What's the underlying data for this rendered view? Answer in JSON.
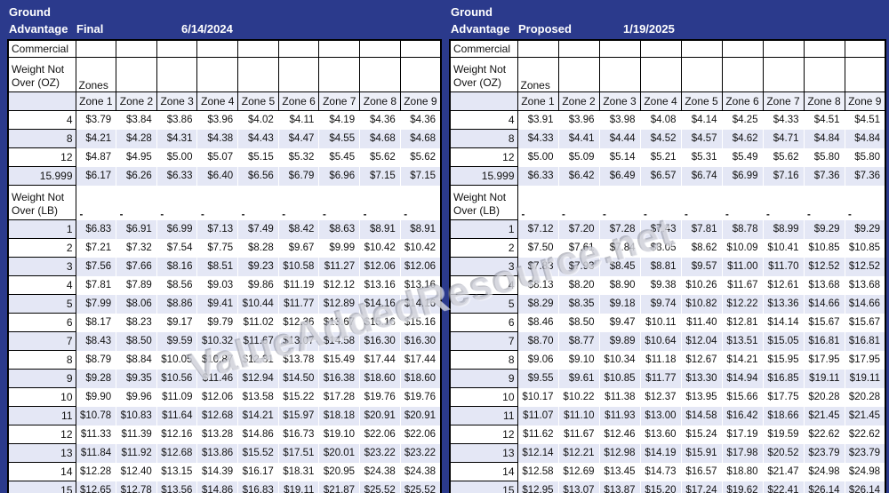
{
  "watermark": "ValueAddedResource.net",
  "colors": {
    "navy_background": "#2B3A8C",
    "stripe_lavender": "#E4E7F5",
    "zone_header_bg": "#EDEFF8",
    "grid_border": "#000000",
    "header_text": "#FFFFFF"
  },
  "chart_data": [
    {
      "type": "table",
      "title_line1": "Ground",
      "title_line2": "Advantage",
      "variant": "Final",
      "date": "6/14/2024",
      "commercial_label": "Commercial",
      "oz_header": "Weight Not Over (OZ)",
      "zones_label": "Zones",
      "columns": [
        "Zone 1",
        "Zone 2",
        "Zone 3",
        "Zone 4",
        "Zone 5",
        "Zone 6",
        "Zone 7",
        "Zone 8",
        "Zone 9"
      ],
      "oz_rows": [
        {
          "weight": "4",
          "values": [
            "$3.79",
            "$3.84",
            "$3.86",
            "$3.96",
            "$4.02",
            "$4.11",
            "$4.19",
            "$4.36",
            "$4.36"
          ]
        },
        {
          "weight": "8",
          "values": [
            "$4.21",
            "$4.28",
            "$4.31",
            "$4.38",
            "$4.43",
            "$4.47",
            "$4.55",
            "$4.68",
            "$4.68"
          ]
        },
        {
          "weight": "12",
          "values": [
            "$4.87",
            "$4.95",
            "$5.00",
            "$5.07",
            "$5.15",
            "$5.32",
            "$5.45",
            "$5.62",
            "$5.62"
          ]
        },
        {
          "weight": "15.999",
          "values": [
            "$6.17",
            "$6.26",
            "$6.33",
            "$6.40",
            "$6.56",
            "$6.79",
            "$6.96",
            "$7.15",
            "$7.15"
          ]
        }
      ],
      "lb_header": "Weight Not Over (LB)",
      "lb_placeholder": "-",
      "lb_rows": [
        {
          "weight": "1",
          "values": [
            "$6.83",
            "$6.91",
            "$6.99",
            "$7.13",
            "$7.49",
            "$8.42",
            "$8.63",
            "$8.91",
            "$8.91"
          ]
        },
        {
          "weight": "2",
          "values": [
            "$7.21",
            "$7.32",
            "$7.54",
            "$7.75",
            "$8.28",
            "$9.67",
            "$9.99",
            "$10.42",
            "$10.42"
          ]
        },
        {
          "weight": "3",
          "values": [
            "$7.56",
            "$7.66",
            "$8.16",
            "$8.51",
            "$9.23",
            "$10.58",
            "$11.27",
            "$12.06",
            "$12.06"
          ]
        },
        {
          "weight": "4",
          "values": [
            "$7.81",
            "$7.89",
            "$8.56",
            "$9.03",
            "$9.86",
            "$11.19",
            "$12.12",
            "$13.16",
            "$13.16"
          ]
        },
        {
          "weight": "5",
          "values": [
            "$7.99",
            "$8.06",
            "$8.86",
            "$9.41",
            "$10.44",
            "$11.77",
            "$12.89",
            "$14.16",
            "$14.16"
          ]
        },
        {
          "weight": "6",
          "values": [
            "$8.17",
            "$8.23",
            "$9.17",
            "$9.79",
            "$11.02",
            "$12.36",
            "$13.67",
            "$15.16",
            "$15.16"
          ]
        },
        {
          "weight": "7",
          "values": [
            "$8.43",
            "$8.50",
            "$9.59",
            "$10.32",
            "$11.67",
            "$13.07",
            "$14.58",
            "$16.30",
            "$16.30"
          ]
        },
        {
          "weight": "8",
          "values": [
            "$8.79",
            "$8.84",
            "$10.05",
            "$10.87",
            "$12.31",
            "$13.78",
            "$15.49",
            "$17.44",
            "$17.44"
          ]
        },
        {
          "weight": "9",
          "values": [
            "$9.28",
            "$9.35",
            "$10.56",
            "$11.46",
            "$12.94",
            "$14.50",
            "$16.38",
            "$18.60",
            "$18.60"
          ]
        },
        {
          "weight": "10",
          "values": [
            "$9.90",
            "$9.96",
            "$11.09",
            "$12.06",
            "$13.58",
            "$15.22",
            "$17.28",
            "$19.76",
            "$19.76"
          ]
        },
        {
          "weight": "11",
          "values": [
            "$10.78",
            "$10.83",
            "$11.64",
            "$12.68",
            "$14.21",
            "$15.97",
            "$18.18",
            "$20.91",
            "$20.91"
          ]
        },
        {
          "weight": "12",
          "values": [
            "$11.33",
            "$11.39",
            "$12.16",
            "$13.28",
            "$14.86",
            "$16.73",
            "$19.10",
            "$22.06",
            "$22.06"
          ]
        },
        {
          "weight": "13",
          "values": [
            "$11.84",
            "$11.92",
            "$12.68",
            "$13.86",
            "$15.52",
            "$17.51",
            "$20.01",
            "$23.22",
            "$23.22"
          ]
        },
        {
          "weight": "14",
          "values": [
            "$12.28",
            "$12.40",
            "$13.15",
            "$14.39",
            "$16.17",
            "$18.31",
            "$20.95",
            "$24.38",
            "$24.38"
          ]
        },
        {
          "weight": "15",
          "values": [
            "$12.65",
            "$12.78",
            "$13.56",
            "$14.86",
            "$16.83",
            "$19.11",
            "$21.87",
            "$25.52",
            "$25.52"
          ]
        }
      ]
    },
    {
      "type": "table",
      "title_line1": "Ground",
      "title_line2": "Advantage",
      "variant": "Proposed",
      "date": "1/19/2025",
      "commercial_label": "Commercial",
      "oz_header": "Weight Not Over (OZ)",
      "zones_label": "Zones",
      "columns": [
        "Zone 1",
        "Zone 2",
        "Zone 3",
        "Zone 4",
        "Zone 5",
        "Zone 6",
        "Zone 7",
        "Zone 8",
        "Zone 9"
      ],
      "oz_rows": [
        {
          "weight": "4",
          "values": [
            "$3.91",
            "$3.96",
            "$3.98",
            "$4.08",
            "$4.14",
            "$4.25",
            "$4.33",
            "$4.51",
            "$4.51"
          ]
        },
        {
          "weight": "8",
          "values": [
            "$4.33",
            "$4.41",
            "$4.44",
            "$4.52",
            "$4.57",
            "$4.62",
            "$4.71",
            "$4.84",
            "$4.84"
          ]
        },
        {
          "weight": "12",
          "values": [
            "$5.00",
            "$5.09",
            "$5.14",
            "$5.21",
            "$5.31",
            "$5.49",
            "$5.62",
            "$5.80",
            "$5.80"
          ]
        },
        {
          "weight": "15.999",
          "values": [
            "$6.33",
            "$6.42",
            "$6.49",
            "$6.57",
            "$6.74",
            "$6.99",
            "$7.16",
            "$7.36",
            "$7.36"
          ]
        }
      ],
      "lb_header": "Weight Not Over (LB)",
      "lb_placeholder": "-",
      "lb_rows": [
        {
          "weight": "1",
          "values": [
            "$7.12",
            "$7.20",
            "$7.28",
            "$7.43",
            "$7.81",
            "$8.78",
            "$8.99",
            "$9.29",
            "$9.29"
          ]
        },
        {
          "weight": "2",
          "values": [
            "$7.50",
            "$7.61",
            "$7.84",
            "$8.05",
            "$8.62",
            "$10.09",
            "$10.41",
            "$10.85",
            "$10.85"
          ]
        },
        {
          "weight": "3",
          "values": [
            "$7.83",
            "$7.93",
            "$8.45",
            "$8.81",
            "$9.57",
            "$11.00",
            "$11.70",
            "$12.52",
            "$12.52"
          ]
        },
        {
          "weight": "4",
          "values": [
            "$8.13",
            "$8.20",
            "$8.90",
            "$9.38",
            "$10.26",
            "$11.67",
            "$12.61",
            "$13.68",
            "$13.68"
          ]
        },
        {
          "weight": "5",
          "values": [
            "$8.29",
            "$8.35",
            "$9.18",
            "$9.74",
            "$10.82",
            "$12.22",
            "$13.36",
            "$14.66",
            "$14.66"
          ]
        },
        {
          "weight": "6",
          "values": [
            "$8.46",
            "$8.50",
            "$9.47",
            "$10.11",
            "$11.40",
            "$12.81",
            "$14.14",
            "$15.67",
            "$15.67"
          ]
        },
        {
          "weight": "7",
          "values": [
            "$8.70",
            "$8.77",
            "$9.89",
            "$10.64",
            "$12.04",
            "$13.51",
            "$15.05",
            "$16.81",
            "$16.81"
          ]
        },
        {
          "weight": "8",
          "values": [
            "$9.06",
            "$9.10",
            "$10.34",
            "$11.18",
            "$12.67",
            "$14.21",
            "$15.95",
            "$17.95",
            "$17.95"
          ]
        },
        {
          "weight": "9",
          "values": [
            "$9.55",
            "$9.61",
            "$10.85",
            "$11.77",
            "$13.30",
            "$14.94",
            "$16.85",
            "$19.11",
            "$19.11"
          ]
        },
        {
          "weight": "10",
          "values": [
            "$10.17",
            "$10.22",
            "$11.38",
            "$12.37",
            "$13.95",
            "$15.66",
            "$17.75",
            "$20.28",
            "$20.28"
          ]
        },
        {
          "weight": "11",
          "values": [
            "$11.07",
            "$11.10",
            "$11.93",
            "$13.00",
            "$14.58",
            "$16.42",
            "$18.66",
            "$21.45",
            "$21.45"
          ]
        },
        {
          "weight": "12",
          "values": [
            "$11.62",
            "$11.67",
            "$12.46",
            "$13.60",
            "$15.24",
            "$17.19",
            "$19.59",
            "$22.62",
            "$22.62"
          ]
        },
        {
          "weight": "13",
          "values": [
            "$12.14",
            "$12.21",
            "$12.98",
            "$14.19",
            "$15.91",
            "$17.98",
            "$20.52",
            "$23.79",
            "$23.79"
          ]
        },
        {
          "weight": "14",
          "values": [
            "$12.58",
            "$12.69",
            "$13.45",
            "$14.73",
            "$16.57",
            "$18.80",
            "$21.47",
            "$24.98",
            "$24.98"
          ]
        },
        {
          "weight": "15",
          "values": [
            "$12.95",
            "$13.07",
            "$13.87",
            "$15.20",
            "$17.24",
            "$19.62",
            "$22.41",
            "$26.14",
            "$26.14"
          ]
        }
      ]
    }
  ]
}
